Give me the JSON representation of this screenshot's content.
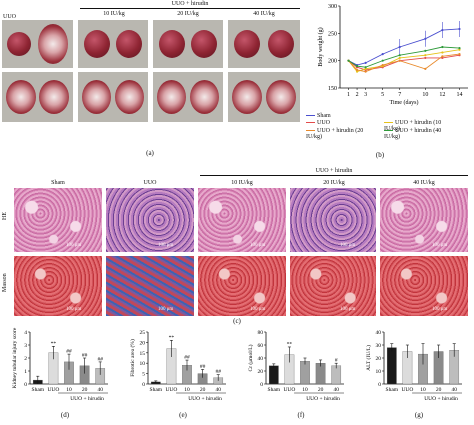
{
  "panel_a": {
    "uuo_hirudin_header": "UUO + hirudin",
    "columns": [
      "UUO",
      "10 IU/kg",
      "20 IU/kg",
      "40 IU/kg"
    ],
    "label": "(a)"
  },
  "panel_b": {
    "label": "(b)",
    "chart_data": {
      "type": "line",
      "xlabel": "Time (days)",
      "ylabel": "Body weight (g)",
      "x": [
        1,
        2,
        3,
        5,
        7,
        10,
        12,
        14
      ],
      "ylim": [
        150,
        300
      ],
      "yticks": [
        150,
        200,
        250,
        300
      ],
      "series": [
        {
          "name": "Sham",
          "color": "#4a4fcf",
          "values": [
            200,
            192,
            196,
            212,
            225,
            240,
            256,
            258
          ]
        },
        {
          "name": "UUO",
          "color": "#e34b4b",
          "values": [
            200,
            188,
            183,
            188,
            200,
            205,
            205,
            210
          ]
        },
        {
          "name": "UUO + hirudin (10 IU/kg)",
          "color": "#e6c21a",
          "values": [
            200,
            180,
            185,
            190,
            205,
            210,
            215,
            220
          ]
        },
        {
          "name": "UUO + hirudin (20 IU/kg)",
          "color": "#e88a2b",
          "values": [
            200,
            183,
            180,
            192,
            200,
            185,
            208,
            212
          ]
        },
        {
          "name": "UUO + hirudin (40 IU/kg)",
          "color": "#2f9a3a",
          "values": [
            200,
            190,
            188,
            200,
            210,
            218,
            225,
            223
          ]
        }
      ]
    },
    "legend": [
      {
        "label": "Sham",
        "color": "#4a4fcf"
      },
      {
        "label": "UUO",
        "color": "#e34b4b"
      },
      {
        "label": "UUO + hirudin (10 IU/kg)",
        "color": "#e6c21a"
      },
      {
        "label": "UUO + hirudin (20 IU/kg)",
        "color": "#e88a2b"
      },
      {
        "label": "UUO + hirudin (40 IU/kg)",
        "color": "#2f9a3a"
      }
    ]
  },
  "panel_c": {
    "label": "(c)",
    "uuo_hirudin_header": "UUO + hirudin",
    "columns": [
      "Sham",
      "UUO",
      "10 IU/kg",
      "20 IU/kg",
      "40 IU/kg"
    ],
    "rows": [
      "HE",
      "Masson"
    ],
    "scale_bar": "100 μm"
  },
  "bar_panels": [
    {
      "label": "(d)",
      "chart_data": {
        "type": "bar",
        "ylabel": "Kidney tubular injury score",
        "categories": [
          "Sham",
          "UUO",
          "10",
          "20",
          "40"
        ],
        "values": [
          0.3,
          2.4,
          1.7,
          1.4,
          1.2
        ],
        "errors": [
          0.3,
          0.5,
          0.6,
          0.6,
          0.5
        ],
        "annotations": [
          "",
          "**",
          "##",
          "##",
          "##"
        ],
        "ylim": [
          0,
          4
        ],
        "yticks": [
          0,
          1,
          2,
          3,
          4
        ],
        "group_label": "UUO + hirudin"
      }
    },
    {
      "label": "(e)",
      "chart_data": {
        "type": "bar",
        "ylabel": "Fibrotic area (%)",
        "categories": [
          "Sham",
          "UUO",
          "10",
          "20",
          "40"
        ],
        "values": [
          1,
          17,
          9,
          5,
          3
        ],
        "errors": [
          0.5,
          4,
          2.5,
          2,
          1.5
        ],
        "annotations": [
          "",
          "**",
          "##",
          "##",
          "##"
        ],
        "ylim": [
          0,
          25
        ],
        "yticks": [
          0,
          5,
          10,
          15,
          20,
          25
        ],
        "group_label": "UUO + hirudin"
      }
    },
    {
      "label": "(f)",
      "chart_data": {
        "type": "bar",
        "ylabel": "Cr (μmol/L)",
        "categories": [
          "Sham",
          "UUO",
          "10",
          "20",
          "40"
        ],
        "values": [
          28,
          45,
          35,
          32,
          28
        ],
        "errors": [
          3,
          12,
          5,
          5,
          4
        ],
        "annotations": [
          "",
          "**",
          "",
          "",
          "#"
        ],
        "ylim": [
          0,
          80
        ],
        "yticks": [
          0,
          20,
          40,
          60,
          80
        ],
        "group_label": "UUO + hirudin"
      }
    },
    {
      "label": "(g)",
      "chart_data": {
        "type": "bar",
        "ylabel": "ALT (IU/L)",
        "categories": [
          "Sham",
          "UUO",
          "10",
          "20",
          "40"
        ],
        "values": [
          28,
          25,
          23,
          25,
          26
        ],
        "errors": [
          3,
          5,
          8,
          5,
          5
        ],
        "annotations": [
          "",
          "",
          "",
          "",
          ""
        ],
        "ylim": [
          0,
          40
        ],
        "yticks": [
          0,
          10,
          20,
          30,
          40
        ],
        "group_label": "UUO + hirudin"
      }
    }
  ]
}
